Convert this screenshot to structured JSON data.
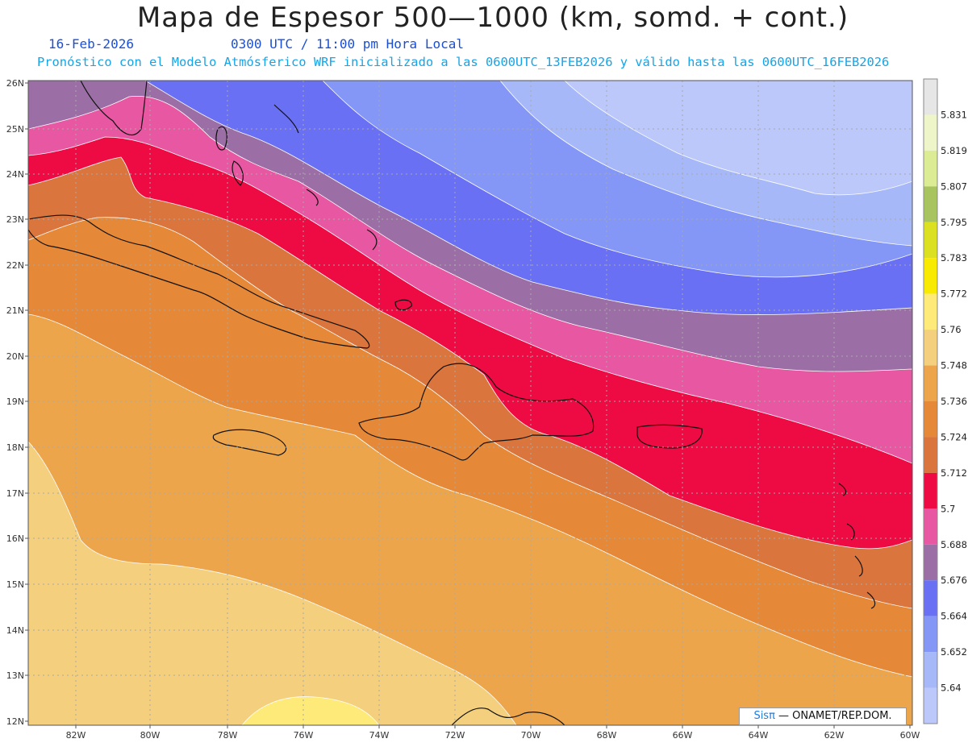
{
  "header": {
    "title": "Mapa de Espesor 500—1000 (km, somd. + cont.)",
    "date": "16-Feb-2026",
    "time": "0300 UTC / 11:00 pm Hora Local",
    "description": "Pronóstico con el Modelo Atmósferico WRF inicializado a las 0600UTC_13FEB2026 y válido hasta las  0600UTC_16FEB2026"
  },
  "axes": {
    "latitude_labels": [
      "26N",
      "25N",
      "24N",
      "23N",
      "22N",
      "21N",
      "20N",
      "19N",
      "18N",
      "17N",
      "16N",
      "15N",
      "14N",
      "13N",
      "12N"
    ],
    "longitude_labels": [
      "82W",
      "80W",
      "78W",
      "76W",
      "74W",
      "72W",
      "70W",
      "68W",
      "66W",
      "64W",
      "62W",
      "60W"
    ]
  },
  "colorbar": {
    "levels": [
      "5.831",
      "5.819",
      "5.807",
      "5.795",
      "5.783",
      "5.772",
      "5.76",
      "5.748",
      "5.736",
      "5.724",
      "5.712",
      "5.7",
      "5.688",
      "5.676",
      "5.664",
      "5.652",
      "5.64"
    ],
    "colors": [
      "#e6e6e6",
      "#eef5c8",
      "#dcec95",
      "#a8c45e",
      "#dbe021",
      "#f8ea00",
      "#fdea78",
      "#f3cf7e",
      "#eda54c",
      "#e58838",
      "#d9753d",
      "#ee0a42",
      "#e757a2",
      "#9b6fa6",
      "#6a70f4",
      "#8497f7",
      "#a6b8f8",
      "#bcc8fa"
    ]
  },
  "credit": {
    "brand": "Sisπ",
    "text": " — ONAMET/REP.DOM."
  }
}
